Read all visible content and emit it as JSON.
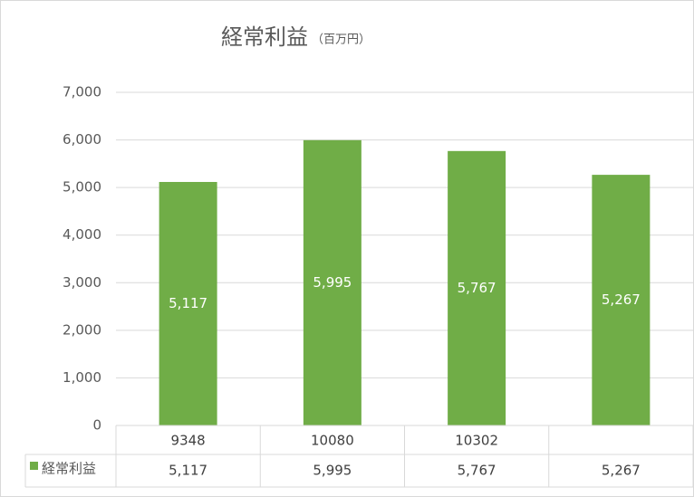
{
  "chart_data": {
    "type": "bar",
    "title": "経常利益",
    "subtitle": "（百万円）",
    "categories": [
      "9348",
      "10080",
      "10302",
      null
    ],
    "series": [
      {
        "name": "経常利益",
        "color": "#70ad47",
        "values": [
          5117,
          5995,
          5767,
          5267
        ],
        "value_labels": [
          "5,117",
          "5,995",
          "5,767",
          "5,267"
        ]
      }
    ],
    "ylim": [
      0,
      7000
    ],
    "yticks": [
      0,
      {
        "value": 1000,
        "label": "1,000"
      },
      {
        "value": 2000,
        "label": "2,000"
      },
      {
        "value": 3000,
        "label": "3,000"
      },
      {
        "value": 4000,
        "label": "4,000"
      },
      {
        "value": 5000,
        "label": "5,000"
      },
      {
        "value": 6000,
        "label": "6,000"
      },
      {
        "value": 7000,
        "label": "7,000"
      }
    ],
    "grid": true,
    "data_table": true
  }
}
